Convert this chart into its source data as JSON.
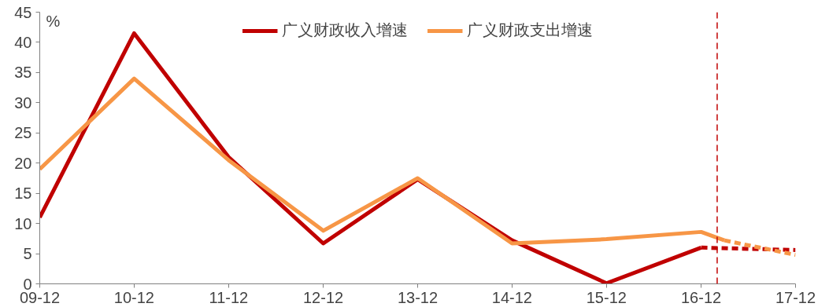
{
  "chart_data": {
    "type": "line",
    "ylabel": "%",
    "x": [
      "2009-12",
      "2010-12",
      "2011-12",
      "2012-12",
      "2013-12",
      "2014-12",
      "2015-12",
      "2016-12"
    ],
    "xlim": [
      "2009-12",
      "2017-12"
    ],
    "xticks": [
      {
        "value": "2009-12",
        "label": "09-12"
      },
      {
        "value": "2010-12",
        "label": "10-12"
      },
      {
        "value": "2011-12",
        "label": "11-12"
      },
      {
        "value": "2012-12",
        "label": "12-12"
      },
      {
        "value": "2013-12",
        "label": "13-12"
      },
      {
        "value": "2014-12",
        "label": "14-12"
      },
      {
        "value": "2015-12",
        "label": "15-12"
      },
      {
        "value": "2016-12",
        "label": "16-12"
      },
      {
        "value": "2017-12",
        "label": "17-12"
      }
    ],
    "ylim": [
      0,
      45
    ],
    "yticks": [
      0,
      5,
      10,
      15,
      20,
      25,
      30,
      35,
      40,
      45
    ],
    "series": [
      {
        "name": "广义财政收入增速",
        "color": "#c00000",
        "values": [
          11,
          41.5,
          21,
          6.7,
          17.3,
          7.2,
          0.1,
          6
        ]
      },
      {
        "name": "广义财政支出增速",
        "color": "#f79646",
        "x": [
          "2009-12",
          "2010-12",
          "2011-12",
          "2012-12",
          "2013-12",
          "2014-12",
          "2015-12",
          "2016-12",
          "2017-03"
        ],
        "values": [
          19,
          34,
          20.5,
          8.8,
          17.5,
          6.7,
          7.4,
          8.6,
          7.2
        ]
      },
      {
        "color": "#c00000",
        "line_style": "dashed",
        "x": [
          "2016-12",
          "2017-12"
        ],
        "values": [
          6,
          5.6
        ]
      },
      {
        "color": "#f79646",
        "line_style": "dashed",
        "x": [
          "2017-03",
          "2017-12"
        ],
        "values": [
          7.2,
          4.8
        ]
      }
    ],
    "ref_lines": [
      {
        "axis": "x",
        "value": "2017-02",
        "color": "#c00000",
        "line_style": "dashed"
      }
    ],
    "legend": "top",
    "grid": false,
    "marker": "none",
    "line_style": "solid"
  }
}
